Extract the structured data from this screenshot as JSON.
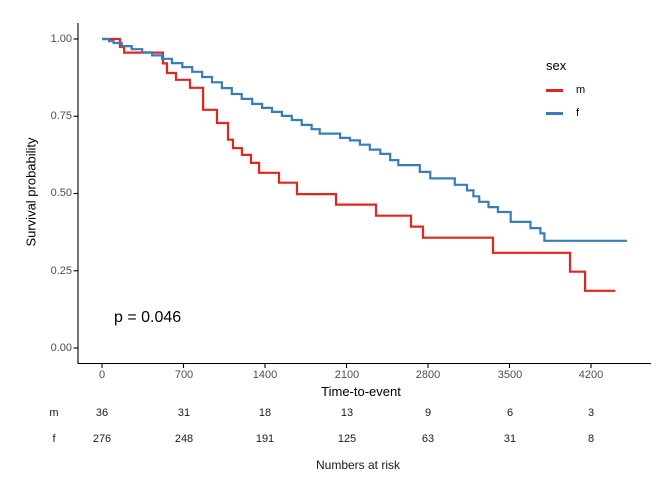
{
  "chart_data": {
    "type": "line",
    "subtype": "kaplan_meier_step",
    "title": "",
    "xlabel": "Time-to-event",
    "ylabel": "Survival probability",
    "p_value": "p = 0.046",
    "grid": false,
    "legend_position": "right",
    "xlim": [
      0,
      4509
    ],
    "ylim": [
      0,
      1
    ],
    "x_ticks": [
      0,
      700,
      1400,
      2100,
      2800,
      3500,
      4200
    ],
    "x_tick_labels": [
      "0",
      "700",
      "1400",
      "2100",
      "2800",
      "3500",
      "4200"
    ],
    "y_ticks": [
      1.0,
      0.75,
      0.5,
      0.25,
      0.0
    ],
    "y_tick_labels": [
      "1.00",
      "0.75",
      "0.50",
      "0.25",
      "0.00"
    ],
    "series": [
      {
        "name": "m",
        "color": "#E4241F",
        "points": [
          [
            0,
            1.0
          ],
          [
            155,
            0.974
          ],
          [
            190,
            0.956
          ],
          [
            524,
            0.921
          ],
          [
            558,
            0.89
          ],
          [
            636,
            0.868
          ],
          [
            756,
            0.842
          ],
          [
            868,
            0.771
          ],
          [
            988,
            0.728
          ],
          [
            1082,
            0.674
          ],
          [
            1125,
            0.647
          ],
          [
            1202,
            0.625
          ],
          [
            1280,
            0.599
          ],
          [
            1349,
            0.567
          ],
          [
            1520,
            0.535
          ],
          [
            1675,
            0.498
          ],
          [
            2010,
            0.464
          ],
          [
            2353,
            0.428
          ],
          [
            2654,
            0.393
          ],
          [
            2757,
            0.357
          ],
          [
            3358,
            0.308
          ],
          [
            4020,
            0.247
          ],
          [
            4149,
            0.185
          ],
          [
            4410,
            0.185
          ]
        ]
      },
      {
        "name": "f",
        "color": "#377EB8",
        "points": [
          [
            0,
            1.0
          ],
          [
            60,
            0.993
          ],
          [
            100,
            0.987
          ],
          [
            170,
            0.977
          ],
          [
            255,
            0.967
          ],
          [
            345,
            0.957
          ],
          [
            430,
            0.947
          ],
          [
            515,
            0.936
          ],
          [
            600,
            0.922
          ],
          [
            690,
            0.909
          ],
          [
            775,
            0.894
          ],
          [
            860,
            0.877
          ],
          [
            945,
            0.86
          ],
          [
            1030,
            0.841
          ],
          [
            1115,
            0.822
          ],
          [
            1200,
            0.806
          ],
          [
            1290,
            0.79
          ],
          [
            1375,
            0.777
          ],
          [
            1460,
            0.764
          ],
          [
            1545,
            0.751
          ],
          [
            1630,
            0.738
          ],
          [
            1715,
            0.722
          ],
          [
            1800,
            0.708
          ],
          [
            1870,
            0.694
          ],
          [
            2045,
            0.68
          ],
          [
            2130,
            0.672
          ],
          [
            2215,
            0.658
          ],
          [
            2300,
            0.642
          ],
          [
            2390,
            0.628
          ],
          [
            2475,
            0.608
          ],
          [
            2545,
            0.592
          ],
          [
            2730,
            0.57
          ],
          [
            2820,
            0.549
          ],
          [
            3030,
            0.528
          ],
          [
            3135,
            0.51
          ],
          [
            3190,
            0.491
          ],
          [
            3240,
            0.473
          ],
          [
            3320,
            0.456
          ],
          [
            3400,
            0.44
          ],
          [
            3510,
            0.408
          ],
          [
            3680,
            0.388
          ],
          [
            3765,
            0.371
          ],
          [
            3800,
            0.347
          ],
          [
            4509,
            0.347
          ]
        ]
      }
    ]
  },
  "legend": {
    "title": "sex",
    "items": [
      {
        "label": "m",
        "color": "#E4241F"
      },
      {
        "label": "f",
        "color": "#377EB8"
      }
    ]
  },
  "risk_table": {
    "title": "Numbers at risk",
    "time_points": [
      0,
      700,
      1400,
      2100,
      2800,
      3500,
      4200
    ],
    "rows": [
      {
        "label": "m",
        "counts": [
          "36",
          "31",
          "18",
          "13",
          "9",
          "6",
          "3"
        ]
      },
      {
        "label": "f",
        "counts": [
          "276",
          "248",
          "191",
          "125",
          "63",
          "31",
          "8"
        ]
      }
    ]
  }
}
